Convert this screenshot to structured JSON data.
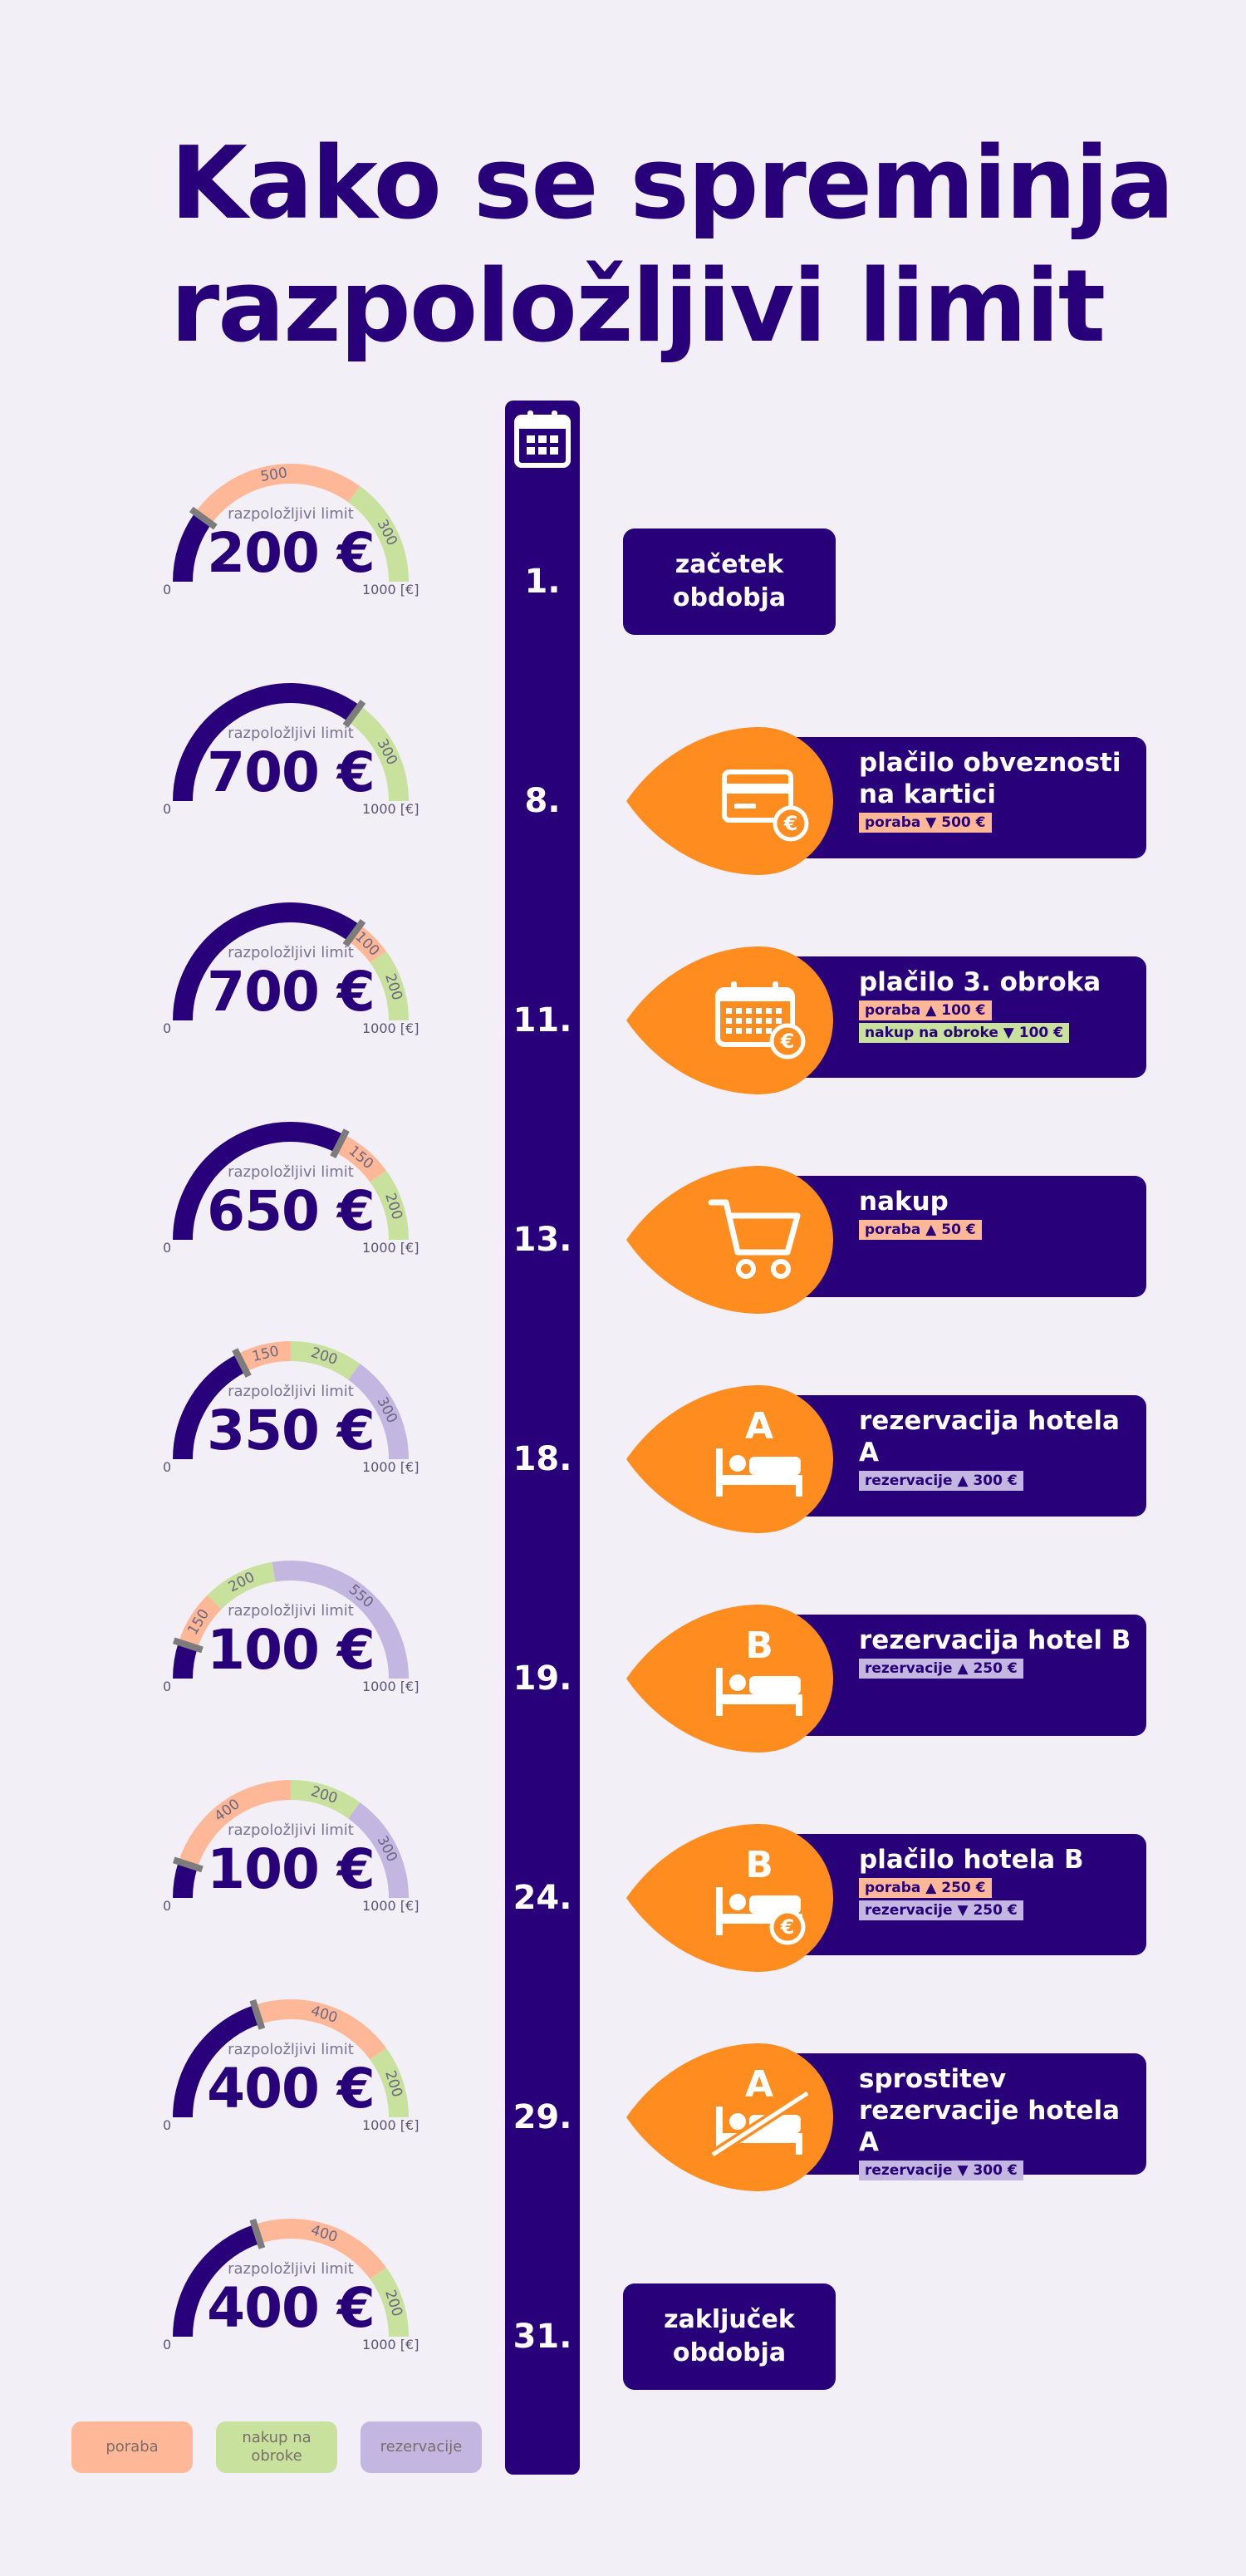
{
  "title": [
    "Kako se spreminja",
    "razpoložljivi limit"
  ],
  "colors": {
    "navy": "#28007a",
    "orange": "#ff8c1f",
    "poraba": "#ffb897",
    "nakup_na_obroke": "#c8e19c",
    "rezervacije": "#c3b6e0",
    "background": "#f2eff7"
  },
  "gauge_common": {
    "caption": "razpoložljivi limit",
    "min": "0",
    "max": "1000 [€]"
  },
  "rows": [
    {
      "day": "1.",
      "gauge": {
        "value": "200 €",
        "segments": [
          {
            "type": "poraba",
            "amount": 500
          },
          {
            "type": "nakup_na_obroke",
            "amount": 300
          }
        ]
      },
      "period": [
        "začetek",
        "obdobja"
      ]
    },
    {
      "day": "8.",
      "gauge": {
        "value": "700 €",
        "segments": [
          {
            "type": "nakup_na_obroke",
            "amount": 300
          }
        ]
      },
      "event": {
        "title": [
          "plačilo obveznosti",
          "na kartici"
        ],
        "icon": "credit-card-euro-icon",
        "tags": [
          {
            "type": "poraba",
            "text": "poraba ▼ 500 €"
          }
        ]
      }
    },
    {
      "day": "11.",
      "gauge": {
        "value": "700 €",
        "segments": [
          {
            "type": "poraba",
            "amount": 100
          },
          {
            "type": "nakup_na_obroke",
            "amount": 200
          }
        ]
      },
      "event": {
        "title": [
          "plačilo 3. obroka"
        ],
        "icon": "calendar-euro-icon",
        "tags": [
          {
            "type": "poraba",
            "text": "poraba ▲ 100 €"
          },
          {
            "type": "nakup_na_obroke",
            "text": "nakup na obroke ▼ 100 €"
          }
        ]
      }
    },
    {
      "day": "13.",
      "gauge": {
        "value": "650 €",
        "segments": [
          {
            "type": "poraba",
            "amount": 150
          },
          {
            "type": "nakup_na_obroke",
            "amount": 200
          }
        ]
      },
      "event": {
        "title": [
          "nakup"
        ],
        "icon": "shopping-cart-icon",
        "tags": [
          {
            "type": "poraba",
            "text": "poraba ▲ 50 €"
          }
        ]
      }
    },
    {
      "day": "18.",
      "gauge": {
        "value": "350 €",
        "segments": [
          {
            "type": "poraba",
            "amount": 150
          },
          {
            "type": "nakup_na_obroke",
            "amount": 200
          },
          {
            "type": "rezervacije",
            "amount": 300
          }
        ]
      },
      "event": {
        "title": [
          "rezervacija hotela A"
        ],
        "icon": "hotel-bed-icon",
        "icon_letter": "A",
        "tags": [
          {
            "type": "rezervacije",
            "text": "rezervacije ▲ 300 €"
          }
        ]
      }
    },
    {
      "day": "19.",
      "gauge": {
        "value": "100 €",
        "segments": [
          {
            "type": "poraba",
            "amount": 150
          },
          {
            "type": "nakup_na_obroke",
            "amount": 200
          },
          {
            "type": "rezervacije",
            "amount": 550
          }
        ]
      },
      "event": {
        "title": [
          "rezervacija hotel B"
        ],
        "icon": "hotel-bed-icon",
        "icon_letter": "B",
        "tags": [
          {
            "type": "rezervacije",
            "text": "rezervacije ▲ 250 €"
          }
        ]
      }
    },
    {
      "day": "24.",
      "gauge": {
        "value": "100 €",
        "segments": [
          {
            "type": "poraba",
            "amount": 400
          },
          {
            "type": "nakup_na_obroke",
            "amount": 200
          },
          {
            "type": "rezervacije",
            "amount": 300
          }
        ]
      },
      "event": {
        "title": [
          "plačilo hotela B"
        ],
        "icon": "hotel-bed-euro-icon",
        "icon_letter": "B",
        "tags": [
          {
            "type": "poraba",
            "text": "poraba ▲ 250 €"
          },
          {
            "type": "rezervacije",
            "text": "rezervacije ▼ 250 €"
          }
        ]
      }
    },
    {
      "day": "29.",
      "gauge": {
        "value": "400 €",
        "segments": [
          {
            "type": "poraba",
            "amount": 400
          },
          {
            "type": "nakup_na_obroke",
            "amount": 200
          }
        ]
      },
      "event": {
        "title": [
          "sprostitev",
          "rezervacije hotela A"
        ],
        "icon": "hotel-bed-released-icon",
        "icon_letter": "A",
        "tags": [
          {
            "type": "rezervacije",
            "text": "rezervacije ▼ 300 €"
          }
        ]
      }
    },
    {
      "day": "31.",
      "gauge": {
        "value": "400 €",
        "segments": [
          {
            "type": "poraba",
            "amount": 400
          },
          {
            "type": "nakup_na_obroke",
            "amount": 200
          }
        ]
      },
      "period": [
        "zaključek",
        "obdobja"
      ]
    }
  ],
  "legend": [
    {
      "type": "poraba",
      "label": "poraba"
    },
    {
      "type": "nakup_na_obroke",
      "label": "nakup na obroke"
    },
    {
      "type": "rezervacije",
      "label": "rezervacije"
    }
  ]
}
